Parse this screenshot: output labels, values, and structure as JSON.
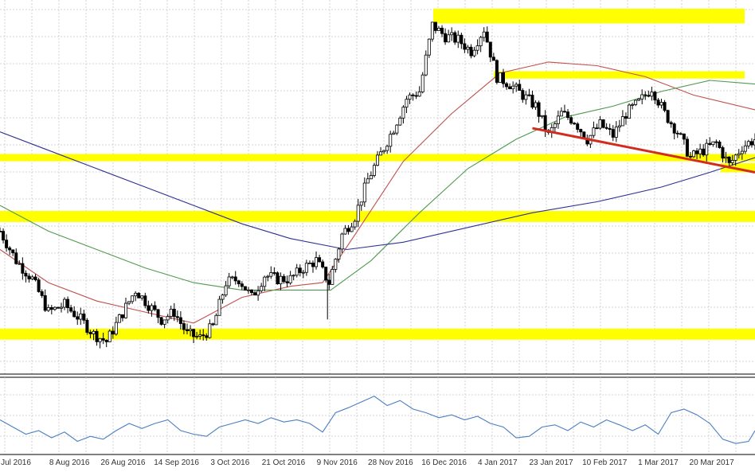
{
  "chart_data": [
    {
      "type": "candlestick",
      "title": "",
      "xlabel": "",
      "ylabel": "",
      "grid": true,
      "x_tick_labels": [
        "Jul 2016",
        "8 Aug 2016",
        "26 Aug 2016",
        "14 Sep 2016",
        "3 Oct 2016",
        "21 Oct 2016",
        "9 Nov 2016",
        "28 Nov 2016",
        "16 Dec 2016",
        "4 Jan 2017",
        "23 Jan 2017",
        "10 Feb 2017",
        "1 Mar 2017",
        "20 Mar 2017"
      ],
      "ylim": [
        0,
        100
      ],
      "price_path": [
        [
          0,
          38
        ],
        [
          10,
          30
        ],
        [
          20,
          25
        ],
        [
          30,
          16
        ],
        [
          40,
          18
        ],
        [
          50,
          14
        ],
        [
          58,
          10
        ],
        [
          66,
          8
        ],
        [
          75,
          15
        ],
        [
          84,
          22
        ],
        [
          92,
          18
        ],
        [
          100,
          14
        ],
        [
          108,
          16
        ],
        [
          116,
          10
        ],
        [
          124,
          9
        ],
        [
          132,
          12
        ],
        [
          140,
          24
        ],
        [
          148,
          25
        ],
        [
          156,
          20
        ],
        [
          164,
          26
        ],
        [
          172,
          25
        ],
        [
          180,
          25
        ],
        [
          188,
          28
        ],
        [
          196,
          30
        ],
        [
          204,
          24
        ],
        [
          212,
          37
        ],
        [
          220,
          42
        ],
        [
          228,
          52
        ],
        [
          236,
          59
        ],
        [
          244,
          66
        ],
        [
          252,
          74
        ],
        [
          260,
          76
        ],
        [
          268,
          94
        ],
        [
          276,
          91
        ],
        [
          284,
          90
        ],
        [
          292,
          87
        ],
        [
          300,
          93
        ],
        [
          308,
          80
        ],
        [
          316,
          78
        ],
        [
          324,
          75
        ],
        [
          332,
          72
        ],
        [
          340,
          64
        ],
        [
          348,
          70
        ],
        [
          356,
          68
        ],
        [
          364,
          63
        ],
        [
          372,
          67
        ],
        [
          380,
          64
        ],
        [
          388,
          70
        ],
        [
          396,
          73
        ],
        [
          404,
          77
        ],
        [
          412,
          70
        ],
        [
          420,
          65
        ],
        [
          428,
          58
        ],
        [
          436,
          60
        ],
        [
          444,
          62
        ],
        [
          452,
          56
        ],
        [
          460,
          61
        ],
        [
          468,
          63
        ]
      ],
      "series": [
        {
          "type": "moving-average",
          "color": "#c0504d",
          "values": [
            [
              0,
              33
            ],
            [
              30,
              24
            ],
            [
              60,
              19
            ],
            [
              90,
              16
            ],
            [
              120,
              13
            ],
            [
              150,
              20
            ],
            [
              180,
              23
            ],
            [
              200,
              24
            ],
            [
              220,
              37
            ],
            [
              250,
              57
            ],
            [
              280,
              70
            ],
            [
              310,
              81
            ],
            [
              340,
              84
            ],
            [
              370,
              83
            ],
            [
              400,
              80
            ],
            [
              430,
              75
            ],
            [
              468,
              71
            ]
          ]
        },
        {
          "type": "moving-average",
          "color": "#4f9a4f",
          "values": [
            [
              0,
              45
            ],
            [
              30,
              38
            ],
            [
              60,
              33
            ],
            [
              90,
              28
            ],
            [
              120,
              24
            ],
            [
              150,
              22
            ],
            [
              180,
              22
            ],
            [
              205,
              22
            ],
            [
              230,
              30
            ],
            [
              260,
              43
            ],
            [
              290,
              55
            ],
            [
              320,
              63
            ],
            [
              350,
              69
            ],
            [
              380,
              72
            ],
            [
              410,
              76
            ],
            [
              440,
              79
            ],
            [
              468,
              78
            ]
          ]
        },
        {
          "type": "moving-average",
          "color": "#2e3192",
          "values": [
            [
              0,
              65
            ],
            [
              30,
              60
            ],
            [
              60,
              55
            ],
            [
              90,
              50
            ],
            [
              120,
              45
            ],
            [
              150,
              40
            ],
            [
              180,
              36
            ],
            [
              215,
              33
            ],
            [
              250,
              35
            ],
            [
              290,
              39
            ],
            [
              330,
              43
            ],
            [
              370,
              46
            ],
            [
              410,
              50
            ],
            [
              440,
              54
            ],
            [
              468,
              58
            ]
          ]
        }
      ],
      "zones": [
        {
          "from": 94.5,
          "to": 98.5,
          "color": "#ffff00"
        },
        {
          "from": 79.5,
          "to": 81.5,
          "color": "#ffff00"
        },
        {
          "from": 57,
          "to": 59,
          "color": "#ffff00"
        },
        {
          "from": 40.5,
          "to": 43.5,
          "color": "#ffff00"
        },
        {
          "from": 8.5,
          "to": 11.5,
          "color": "#ffff00"
        }
      ],
      "trendline": {
        "color": "#d22b1f",
        "points": [
          [
            330,
            66
          ],
          [
            468,
            54
          ]
        ]
      }
    },
    {
      "type": "line",
      "title": "",
      "grid": true,
      "ylim": [
        0,
        100
      ],
      "series": [
        {
          "color": "#4a7fc1",
          "values": [
            [
              0,
              45
            ],
            [
              8,
              35
            ],
            [
              16,
              25
            ],
            [
              24,
              30
            ],
            [
              32,
              20
            ],
            [
              40,
              28
            ],
            [
              48,
              15
            ],
            [
              56,
              22
            ],
            [
              64,
              18
            ],
            [
              72,
              30
            ],
            [
              80,
              40
            ],
            [
              88,
              33
            ],
            [
              96,
              40
            ],
            [
              104,
              45
            ],
            [
              112,
              30
            ],
            [
              120,
              25
            ],
            [
              128,
              22
            ],
            [
              136,
              35
            ],
            [
              144,
              40
            ],
            [
              152,
              45
            ],
            [
              160,
              40
            ],
            [
              168,
              48
            ],
            [
              176,
              42
            ],
            [
              184,
              45
            ],
            [
              192,
              40
            ],
            [
              200,
              28
            ],
            [
              208,
              55
            ],
            [
              216,
              62
            ],
            [
              224,
              70
            ],
            [
              232,
              78
            ],
            [
              240,
              65
            ],
            [
              248,
              72
            ],
            [
              256,
              60
            ],
            [
              264,
              55
            ],
            [
              272,
              48
            ],
            [
              280,
              52
            ],
            [
              288,
              45
            ],
            [
              296,
              50
            ],
            [
              304,
              40
            ],
            [
              312,
              35
            ],
            [
              320,
              20
            ],
            [
              328,
              22
            ],
            [
              336,
              35
            ],
            [
              344,
              38
            ],
            [
              352,
              30
            ],
            [
              360,
              42
            ],
            [
              368,
              35
            ],
            [
              376,
              45
            ],
            [
              384,
              38
            ],
            [
              392,
              30
            ],
            [
              400,
              38
            ],
            [
              408,
              25
            ],
            [
              416,
              55
            ],
            [
              424,
              60
            ],
            [
              432,
              52
            ],
            [
              440,
              40
            ],
            [
              448,
              18
            ],
            [
              456,
              12
            ],
            [
              464,
              15
            ],
            [
              468,
              30
            ]
          ]
        }
      ]
    }
  ]
}
